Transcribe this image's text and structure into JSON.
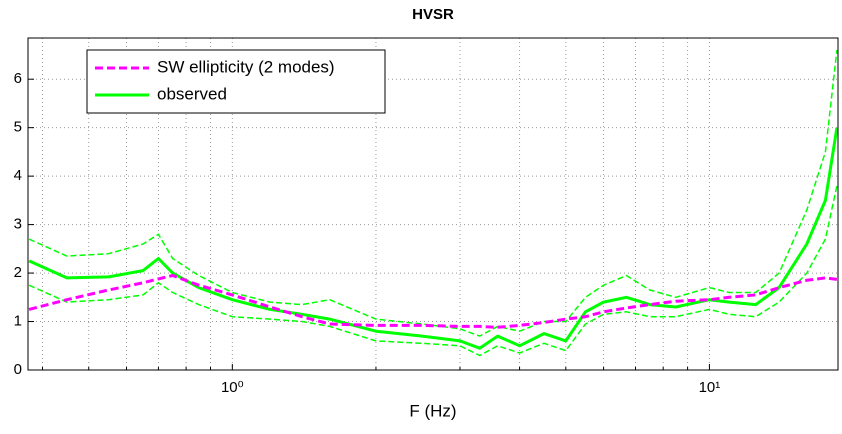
{
  "chart_data": {
    "type": "line",
    "title": "HVSR",
    "x_label": "F (Hz)",
    "x": [
      0.375,
      0.45,
      0.55,
      0.65,
      0.7,
      0.75,
      0.85,
      1.0,
      1.2,
      1.4,
      1.6,
      2.0,
      2.5,
      3.0,
      3.3,
      3.6,
      4.0,
      4.5,
      5.0,
      5.5,
      6.0,
      6.7,
      7.5,
      8.5,
      10,
      11,
      12.5,
      14,
      16,
      17.5,
      18.5
    ],
    "series": [
      {
        "name": "SW ellipticity (2 modes)",
        "color": "#ff00ff",
        "style": "dashed",
        "values": [
          1.25,
          1.45,
          1.65,
          1.8,
          1.88,
          1.95,
          1.75,
          1.55,
          1.3,
          1.1,
          0.95,
          0.92,
          0.92,
          0.9,
          0.9,
          0.88,
          0.92,
          0.98,
          1.05,
          1.1,
          1.2,
          1.28,
          1.35,
          1.42,
          1.45,
          1.5,
          1.55,
          1.7,
          1.85,
          1.9,
          1.87
        ]
      },
      {
        "name": "observed",
        "color": "#00ff00",
        "style": "solid",
        "values": [
          2.25,
          1.9,
          1.92,
          2.05,
          2.3,
          2.0,
          1.7,
          1.45,
          1.25,
          1.15,
          1.05,
          0.8,
          0.7,
          0.6,
          0.45,
          0.7,
          0.5,
          0.75,
          0.6,
          1.2,
          1.4,
          1.5,
          1.35,
          1.3,
          1.45,
          1.4,
          1.35,
          1.7,
          2.6,
          3.5,
          5.0
        ]
      },
      {
        "color": "#00ff00",
        "style": "dashed",
        "values": [
          2.7,
          2.35,
          2.4,
          2.6,
          2.8,
          2.3,
          1.95,
          1.6,
          1.4,
          1.35,
          1.45,
          1.05,
          0.95,
          0.85,
          0.7,
          0.9,
          0.8,
          1.0,
          1.0,
          1.5,
          1.75,
          1.95,
          1.65,
          1.5,
          1.7,
          1.6,
          1.6,
          2.0,
          3.3,
          4.5,
          6.6
        ]
      },
      {
        "color": "#00ff00",
        "style": "dashed",
        "values": [
          1.75,
          1.4,
          1.45,
          1.55,
          1.8,
          1.6,
          1.35,
          1.1,
          1.05,
          1.0,
          0.9,
          0.6,
          0.55,
          0.5,
          0.3,
          0.5,
          0.35,
          0.55,
          0.4,
          0.95,
          1.15,
          1.2,
          1.1,
          1.1,
          1.25,
          1.15,
          1.1,
          1.4,
          2.0,
          2.7,
          3.8
        ]
      }
    ],
    "xlog": true,
    "xlim": [
      0.373,
      18.6
    ],
    "ylim": [
      0,
      6.85
    ],
    "xticks": [
      {
        "value": 1,
        "label": "10⁰"
      },
      {
        "value": 10,
        "label": "10¹"
      }
    ],
    "xminorticks": [
      0.4,
      0.5,
      0.6,
      0.7,
      0.8,
      0.9,
      2,
      3,
      4,
      5,
      6,
      7,
      8,
      9
    ],
    "yticks": [
      0,
      1,
      2,
      3,
      4,
      5,
      6
    ],
    "grid": true,
    "legend": "upper left"
  }
}
